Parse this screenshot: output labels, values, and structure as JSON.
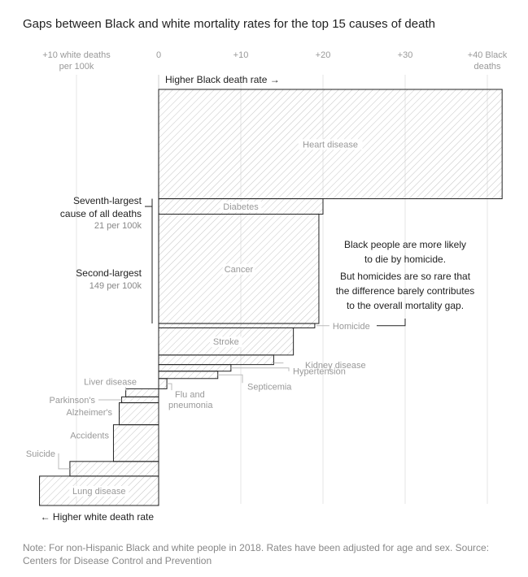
{
  "chart_data": {
    "type": "bar",
    "title": "Gaps between Black and white mortality rates for the top 15 causes of death",
    "axis": {
      "xlim": [
        -14.5,
        41.5
      ],
      "ticks": [
        {
          "value": -10,
          "label": "+10 white deaths",
          "label2": "per 100k"
        },
        {
          "value": 0,
          "label": "0",
          "label2": ""
        },
        {
          "value": 10,
          "label": "+10",
          "label2": ""
        },
        {
          "value": 20,
          "label": "+20",
          "label2": ""
        },
        {
          "value": 30,
          "label": "+30",
          "label2": ""
        },
        {
          "value": 40,
          "label": "+40 Black",
          "label2": "deaths"
        }
      ],
      "grid": true
    },
    "direction_labels": {
      "black": "Higher Black death rate →",
      "white": "← Higher white death rate"
    },
    "series": [
      {
        "cause": "Heart disease",
        "gap": 41.8,
        "total": 149
      },
      {
        "cause": "Diabetes",
        "gap": 20.0,
        "total": 21
      },
      {
        "cause": "Cancer",
        "gap": 19.5,
        "total": 149
      },
      {
        "cause": "Homicide",
        "gap": 19.0,
        "total": 6
      },
      {
        "cause": "Stroke",
        "gap": 16.4,
        "total": 37
      },
      {
        "cause": "Kidney disease",
        "gap": 14.0,
        "total": 13
      },
      {
        "cause": "Hypertension",
        "gap": 8.8,
        "total": 9
      },
      {
        "cause": "Septicemia",
        "gap": 7.2,
        "total": 10
      },
      {
        "cause": "Flu and pneumonia",
        "gap": 1.0,
        "total": 14
      },
      {
        "cause": "Liver disease",
        "gap": -4.0,
        "total": 11
      },
      {
        "cause": "Parkinson's",
        "gap": -4.5,
        "total": 8
      },
      {
        "cause": "Alzheimer's",
        "gap": -4.8,
        "total": 30
      },
      {
        "cause": "Accidents",
        "gap": -5.5,
        "total": 50
      },
      {
        "cause": "Suicide",
        "gap": -10.8,
        "total": 20
      },
      {
        "cause": "Lung disease",
        "gap": -14.5,
        "total": 40
      }
    ],
    "annotations": {
      "diabetes": {
        "line1": "Seventh-largest",
        "line2": "cause of all deaths",
        "sub": "21 per 100k"
      },
      "cancer": {
        "line1": "Second-largest",
        "sub": "149 per 100k"
      },
      "homicide": {
        "lines": [
          "Black people are more likely",
          "to die by homicide.",
          "",
          "But homicides are so rare that",
          "the difference barely contributes",
          "to the overall mortality gap."
        ]
      }
    }
  },
  "note": "Note: For non-Hispanic Black and white people in 2018. Rates have been adjusted for age and sex. Source: Centers for Disease Control and Prevention",
  "colors": {
    "bar_stroke": "#222222",
    "hatch": "#bdbdbd",
    "grid": "#e4e4e4",
    "label": "#999999"
  }
}
